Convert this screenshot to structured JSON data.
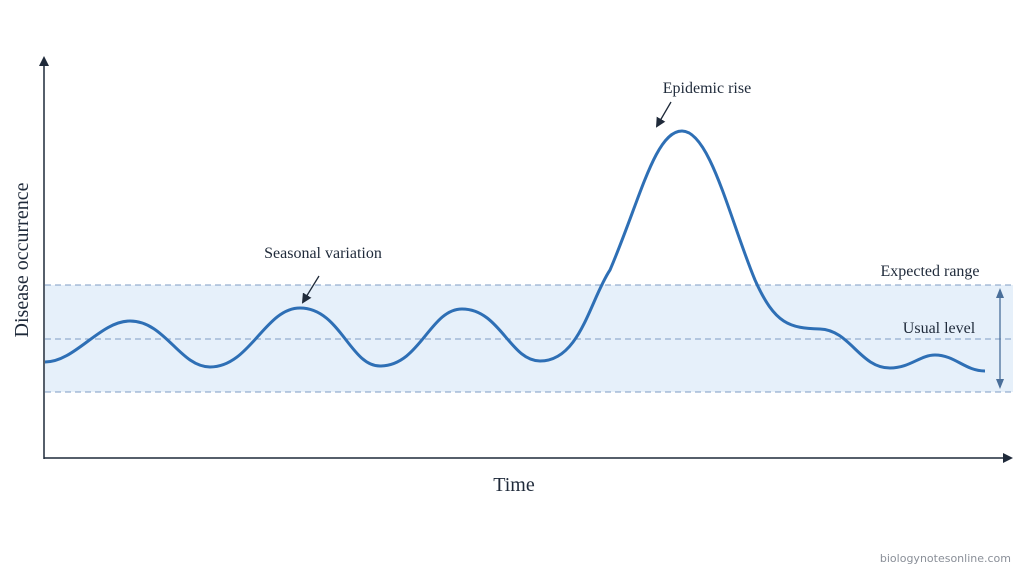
{
  "axes": {
    "y_label": "Disease occurrence",
    "x_label": "Time"
  },
  "annotations": {
    "seasonal": "Seasonal variation",
    "epidemic": "Epidemic rise",
    "expected_range": "Expected range",
    "usual_level": "Usual level"
  },
  "footer": {
    "source": "biologynotesonline.com"
  }
}
